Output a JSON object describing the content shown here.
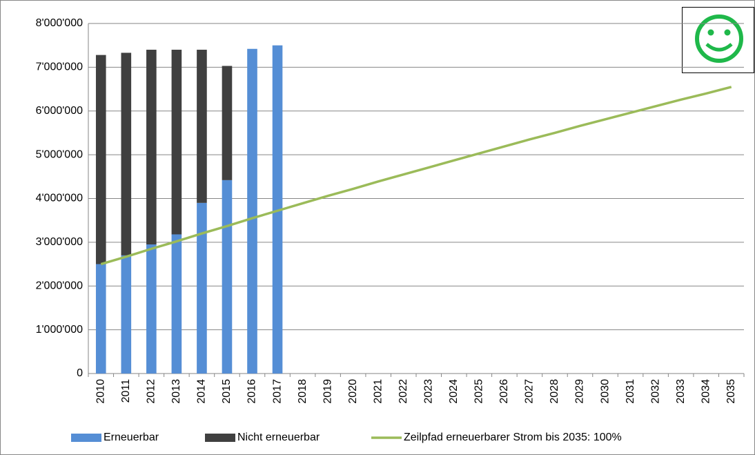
{
  "chart_data": {
    "type": "stacked-bar-line",
    "categories": [
      "2010",
      "2011",
      "2012",
      "2013",
      "2014",
      "2015",
      "2016",
      "2017",
      "2018",
      "2019",
      "2020",
      "2021",
      "2022",
      "2023",
      "2024",
      "2025",
      "2026",
      "2027",
      "2028",
      "2029",
      "2030",
      "2031",
      "2032",
      "2033",
      "2034",
      "2035"
    ],
    "series": [
      {
        "name": "Erneuerbar",
        "type": "bar",
        "color": "#558ed5",
        "values": [
          2500000,
          2700000,
          2950000,
          3180000,
          3900000,
          4420000,
          7420000,
          7500000,
          null,
          null,
          null,
          null,
          null,
          null,
          null,
          null,
          null,
          null,
          null,
          null,
          null,
          null,
          null,
          null,
          null,
          null
        ]
      },
      {
        "name": "Nicht erneuerbar",
        "type": "bar",
        "color": "#404040",
        "values": [
          4780000,
          4630000,
          4450000,
          4220000,
          3500000,
          2610000,
          0,
          0,
          null,
          null,
          null,
          null,
          null,
          null,
          null,
          null,
          null,
          null,
          null,
          null,
          null,
          null,
          null,
          null,
          null,
          null
        ]
      },
      {
        "name": "Zeilpfad erneuerbarer Strom bis 2035: 100%",
        "type": "line",
        "color": "#9bbb59",
        "values": [
          2500000,
          2670000,
          2850000,
          3020000,
          3200000,
          3370000,
          3550000,
          3720000,
          3890000,
          4060000,
          4220000,
          4390000,
          4550000,
          4710000,
          4870000,
          5030000,
          5190000,
          5350000,
          5500000,
          5660000,
          5810000,
          5960000,
          6110000,
          6260000,
          6400000,
          6550000
        ]
      }
    ],
    "ylim": [
      0,
      8000000
    ],
    "yticks": [
      0,
      {
        "value": 1000000,
        "label": "1'000'000"
      },
      {
        "value": 2000000,
        "label": "2'000'000"
      },
      {
        "value": 3000000,
        "label": "3'000'000"
      },
      {
        "value": 4000000,
        "label": "4'000'000"
      },
      {
        "value": 5000000,
        "label": "5'000'000"
      },
      {
        "value": 6000000,
        "label": "6'000'000"
      },
      {
        "value": 7000000,
        "label": "7'000'000"
      },
      {
        "value": 8000000,
        "label": "8'000'000"
      }
    ],
    "grid": true,
    "legend": "bottom"
  }
}
